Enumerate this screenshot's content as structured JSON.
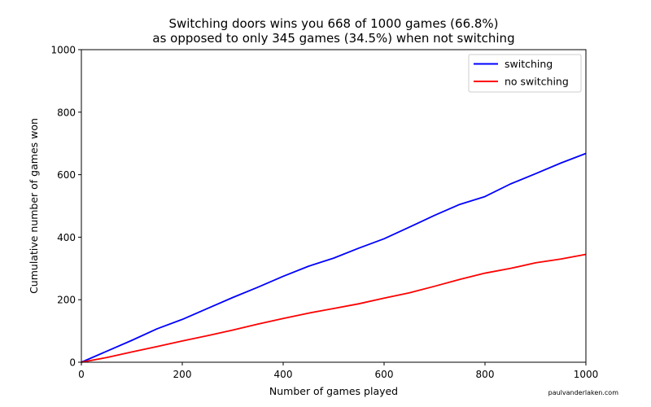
{
  "chart_data": {
    "type": "line",
    "title_line1": "Switching doors wins you 668 of 1000 games (66.8%)",
    "title_line2": "as opposed to only 345 games (34.5%) when not switching",
    "xlabel": "Number of games played",
    "ylabel": "Cumulative number of games won",
    "xlim": [
      0,
      1000
    ],
    "ylim": [
      0,
      1000
    ],
    "xticks": [
      0,
      200,
      400,
      600,
      800,
      1000
    ],
    "yticks": [
      0,
      200,
      400,
      600,
      800,
      1000
    ],
    "grid": false,
    "legend_position": "top-right",
    "x": [
      0,
      50,
      100,
      150,
      200,
      250,
      300,
      350,
      400,
      450,
      500,
      550,
      600,
      650,
      700,
      750,
      800,
      850,
      900,
      950,
      1000
    ],
    "series": [
      {
        "name": "switching",
        "color": "#0000ff",
        "values": [
          0,
          35,
          70,
          107,
          137,
          172,
          207,
          240,
          275,
          307,
          333,
          365,
          395,
          432,
          470,
          505,
          530,
          570,
          603,
          637,
          668
        ]
      },
      {
        "name": "no switching",
        "color": "#ff0000",
        "values": [
          0,
          15,
          33,
          50,
          68,
          85,
          103,
          122,
          140,
          157,
          172,
          187,
          205,
          222,
          243,
          265,
          285,
          300,
          318,
          330,
          345
        ]
      }
    ]
  },
  "watermark": "paulvanderlaken.com"
}
